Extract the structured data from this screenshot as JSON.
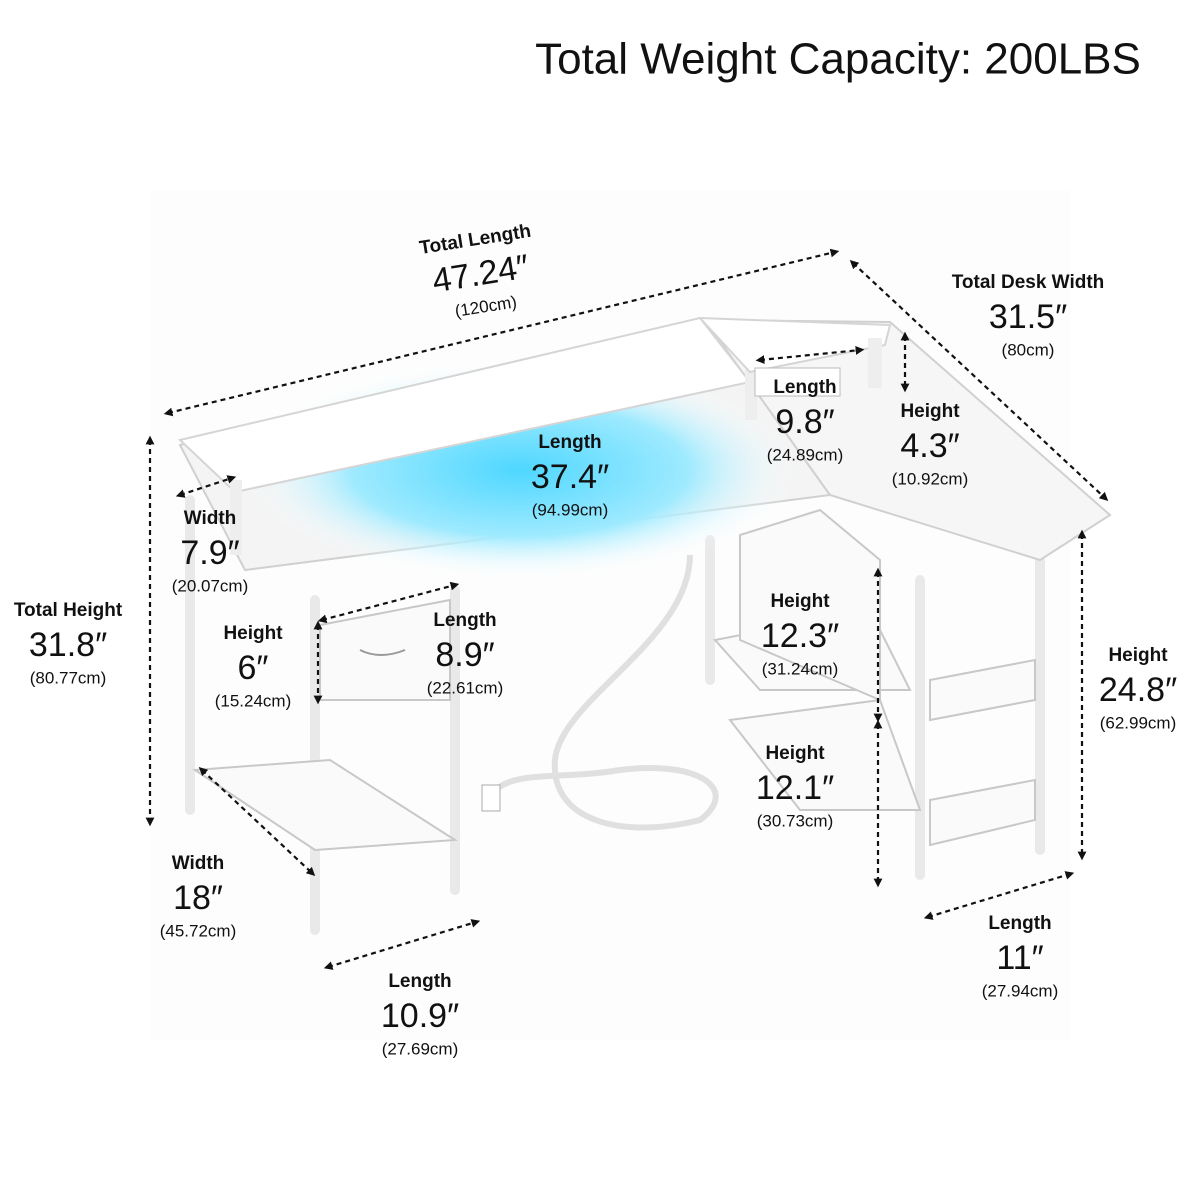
{
  "title": "Total Weight Capacity: 200LBS",
  "dimensions": [
    {
      "label": "Total Length",
      "value": "47.24″",
      "metric": "(120cm)"
    },
    {
      "label": "Total Desk Width",
      "value": "31.5″",
      "metric": "(80cm)"
    },
    {
      "label": "Length",
      "value": "9.8″",
      "metric": "(24.89cm)"
    },
    {
      "label": "Height",
      "value": "4.3″",
      "metric": "(10.92cm)"
    },
    {
      "label": "Length",
      "value": "37.4″",
      "metric": "(94.99cm)"
    },
    {
      "label": "Width",
      "value": "7.9″",
      "metric": "(20.07cm)"
    },
    {
      "label": "Total Height",
      "value": "31.8″",
      "metric": "(80.77cm)"
    },
    {
      "label": "Height",
      "value": "6″",
      "metric": "(15.24cm)"
    },
    {
      "label": "Length",
      "value": "8.9″",
      "metric": "(22.61cm)"
    },
    {
      "label": "Height",
      "value": "12.3″",
      "metric": "(31.24cm)"
    },
    {
      "label": "Height",
      "value": "24.8″",
      "metric": "(62.99cm)"
    },
    {
      "label": "Height",
      "value": "12.1″",
      "metric": "(30.73cm)"
    },
    {
      "label": "Width",
      "value": "18″",
      "metric": "(45.72cm)"
    },
    {
      "label": "Length",
      "value": "11″",
      "metric": "(27.94cm)"
    },
    {
      "label": "Length",
      "value": "10.9″",
      "metric": "(27.69cm)"
    }
  ]
}
